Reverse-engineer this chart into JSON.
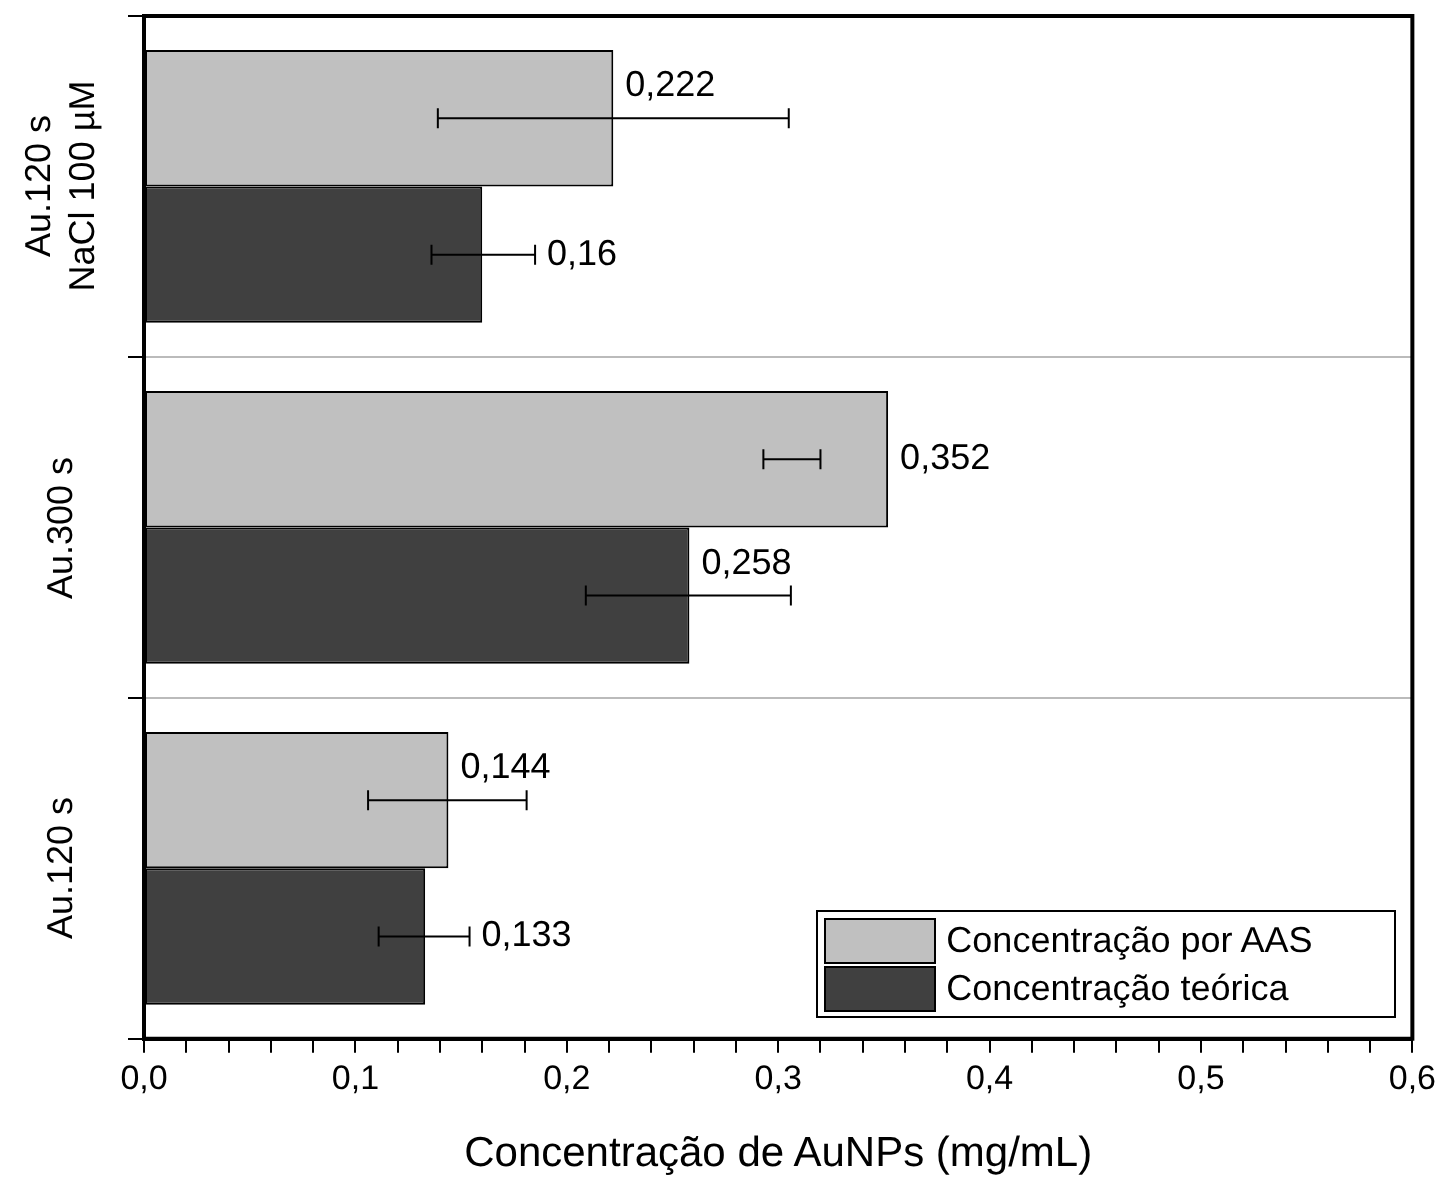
{
  "chart_data": {
    "type": "bar",
    "orientation": "horizontal",
    "xlabel": "Concentração de AuNPs (mg/mL)",
    "categories": [
      "Au.120 s\nNaCl 100 µM",
      "Au.300 s",
      "Au.120 s"
    ],
    "series": [
      {
        "name": "Concentração por AAS",
        "color": "#c0c0c0",
        "values": [
          0.222,
          0.352,
          0.144
        ],
        "errors": [
          [
            0.139,
            0.305
          ],
          [
            0.293,
            0.32
          ],
          [
            0.106,
            0.181
          ]
        ],
        "value_labels": [
          "0,222",
          "0,352",
          "0,144"
        ]
      },
      {
        "name": "Concentração teórica",
        "color": "#404040",
        "values": [
          0.16,
          0.258,
          0.133
        ],
        "errors": [
          [
            0.136,
            0.185
          ],
          [
            0.209,
            0.306
          ],
          [
            0.111,
            0.154
          ]
        ],
        "value_labels": [
          "0,16",
          "0,258",
          "0,133"
        ]
      }
    ],
    "xlim": [
      0,
      0.6
    ],
    "xticks": [
      {
        "value": 0,
        "label": "0,0"
      },
      {
        "value": 0.02,
        "label": null
      },
      {
        "value": 0.04,
        "label": null
      },
      {
        "value": 0.06,
        "label": null
      },
      {
        "value": 0.08,
        "label": null
      },
      {
        "value": 0.1,
        "label": "0,1"
      },
      {
        "value": 0.12,
        "label": null
      },
      {
        "value": 0.14,
        "label": null
      },
      {
        "value": 0.16,
        "label": null
      },
      {
        "value": 0.18,
        "label": null
      },
      {
        "value": 0.2,
        "label": "0,2"
      },
      {
        "value": 0.22,
        "label": null
      },
      {
        "value": 0.24,
        "label": null
      },
      {
        "value": 0.26,
        "label": null
      },
      {
        "value": 0.28,
        "label": null
      },
      {
        "value": 0.3,
        "label": "0,3"
      },
      {
        "value": 0.32,
        "label": null
      },
      {
        "value": 0.34,
        "label": null
      },
      {
        "value": 0.36,
        "label": null
      },
      {
        "value": 0.38,
        "label": null
      },
      {
        "value": 0.4,
        "label": "0,4"
      },
      {
        "value": 0.42,
        "label": null
      },
      {
        "value": 0.44,
        "label": null
      },
      {
        "value": 0.46,
        "label": null
      },
      {
        "value": 0.48,
        "label": null
      },
      {
        "value": 0.5,
        "label": "0,5"
      },
      {
        "value": 0.52,
        "label": null
      },
      {
        "value": 0.54,
        "label": null
      },
      {
        "value": 0.56,
        "label": null
      },
      {
        "value": 0.58,
        "label": null
      },
      {
        "value": 0.6,
        "label": "0,6"
      }
    ],
    "grid": "y",
    "legend": "bottom right"
  }
}
